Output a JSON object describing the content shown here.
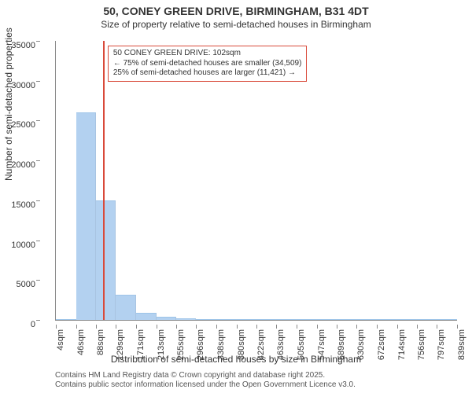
{
  "title": "50, CONEY GREEN DRIVE, BIRMINGHAM, B31 4DT",
  "title_fontsize": 14,
  "subtitle": "Size of property relative to semi-detached houses in Birmingham",
  "subtitle_fontsize": 12,
  "ylabel": "Number of semi-detached properties",
  "xlabel": "Distribution of semi-detached houses by size in Birmingham",
  "chart": {
    "type": "histogram",
    "background_color": "#ffffff",
    "bar_color": "#b3d1f0",
    "bar_border_color": "#9ec4e8",
    "axis_color": "#888888",
    "ylim": [
      0,
      35000
    ],
    "ytick_step": 5000,
    "x_tick_labels": [
      "4sqm",
      "46sqm",
      "88sqm",
      "129sqm",
      "171sqm",
      "213sqm",
      "255sqm",
      "296sqm",
      "338sqm",
      "380sqm",
      "422sqm",
      "463sqm",
      "505sqm",
      "547sqm",
      "589sqm",
      "630sqm",
      "672sqm",
      "714sqm",
      "756sqm",
      "797sqm",
      "839sqm"
    ],
    "x_tick_values": [
      4,
      46,
      88,
      129,
      171,
      213,
      255,
      296,
      338,
      380,
      422,
      463,
      505,
      547,
      589,
      630,
      672,
      714,
      756,
      797,
      839
    ],
    "x_min": 4,
    "x_max": 839,
    "bars": [
      {
        "x0": 4,
        "x1": 46,
        "count": 50
      },
      {
        "x0": 46,
        "x1": 88,
        "count": 26000
      },
      {
        "x0": 88,
        "x1": 129,
        "count": 15000
      },
      {
        "x0": 129,
        "x1": 171,
        "count": 3200
      },
      {
        "x0": 171,
        "x1": 213,
        "count": 900
      },
      {
        "x0": 213,
        "x1": 255,
        "count": 350
      },
      {
        "x0": 255,
        "x1": 296,
        "count": 150
      },
      {
        "x0": 296,
        "x1": 338,
        "count": 70
      },
      {
        "x0": 338,
        "x1": 380,
        "count": 40
      },
      {
        "x0": 380,
        "x1": 422,
        "count": 20
      },
      {
        "x0": 422,
        "x1": 463,
        "count": 12
      },
      {
        "x0": 463,
        "x1": 505,
        "count": 8
      },
      {
        "x0": 505,
        "x1": 547,
        "count": 6
      },
      {
        "x0": 547,
        "x1": 589,
        "count": 4
      },
      {
        "x0": 589,
        "x1": 630,
        "count": 3
      },
      {
        "x0": 630,
        "x1": 672,
        "count": 2
      },
      {
        "x0": 672,
        "x1": 714,
        "count": 2
      },
      {
        "x0": 714,
        "x1": 756,
        "count": 1
      },
      {
        "x0": 756,
        "x1": 797,
        "count": 1
      },
      {
        "x0": 797,
        "x1": 839,
        "count": 1
      }
    ],
    "marker": {
      "x": 102,
      "color": "#d94a3a"
    },
    "annotation": {
      "line1": "50 CONEY GREEN DRIVE: 102sqm",
      "line2": "← 75% of semi-detached houses are smaller (34,509)",
      "line3": "25% of semi-detached houses are larger (11,421) →",
      "border_color": "#d94a3a",
      "text_color": "#333333"
    }
  },
  "footer": {
    "line1": "Contains HM Land Registry data © Crown copyright and database right 2025.",
    "line2": "Contains public sector information licensed under the Open Government Licence v3.0."
  }
}
